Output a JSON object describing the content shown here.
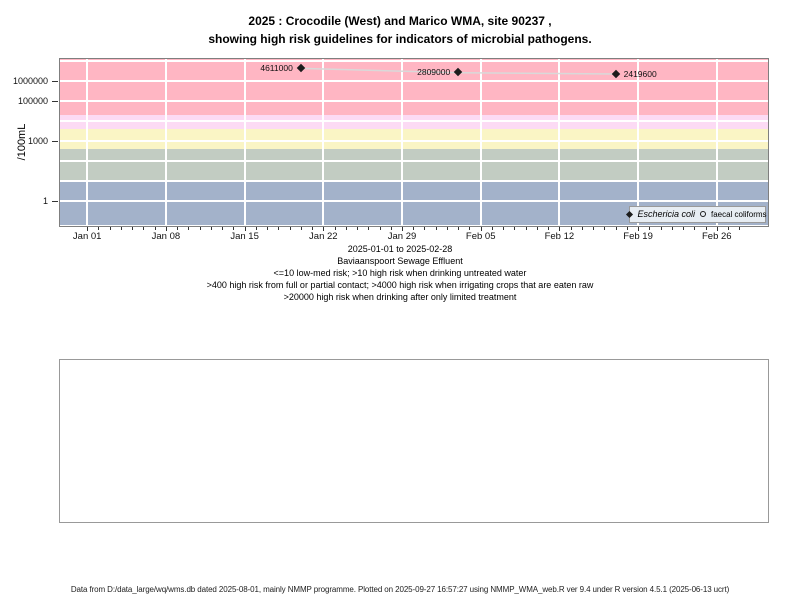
{
  "title": {
    "line1": "2025 : Crocodile (West) and Marico WMA, site 90237 ,",
    "line2": "showing high risk guidelines for indicators of microbial pathogens."
  },
  "chart_data": {
    "type": "scatter",
    "title": "2025 : Crocodile (West) and Marico WMA, site 90237 , showing high risk guidelines for indicators of microbial pathogens.",
    "xlabel": "2025-01-01 to 2025-02-28",
    "ylabel": "/100mL",
    "y_scale": "log10",
    "ylim": [
      0.06,
      14000000
    ],
    "grid": true,
    "x_axis": {
      "tick_labels": [
        "Jan 01",
        "Jan 08",
        "Jan 15",
        "Jan 22",
        "Jan 29",
        "Feb 05",
        "Feb 12",
        "Feb 19",
        "Feb 26"
      ],
      "major_tick_days": [
        0,
        7,
        14,
        21,
        28,
        35,
        42,
        49,
        56
      ],
      "minor_ticks": "daily",
      "total_days": 59
    },
    "y_axis": {
      "tick_labels": [
        "1000000",
        "100000",
        "1000",
        "1"
      ],
      "tick_values": [
        1000000,
        100000,
        1000,
        1
      ],
      "gridline_values": [
        1,
        10,
        100,
        1000,
        10000,
        100000,
        1000000,
        10000000
      ]
    },
    "risk_bands": [
      {
        "range": ">20000",
        "min": 20000,
        "max": null,
        "color": "#FFB6C3",
        "meaning": "high risk when drinking after only limited treatment"
      },
      {
        "range": "4000-20000",
        "min": 4000,
        "max": 20000,
        "color": "#FCDBF4",
        "meaning": "high risk when irrigating crops that are eaten raw"
      },
      {
        "range": "400-4000",
        "min": 400,
        "max": 4000,
        "color": "#FAF5C5",
        "meaning": "high risk from full or partial contact"
      },
      {
        "range": "10-400",
        "min": 10,
        "max": 400,
        "color": "#C2CCC2",
        "meaning": "high risk when drinking untreated water"
      },
      {
        "range": "<=10",
        "min": null,
        "max": 10,
        "color": "#A3B2CA",
        "meaning": "low-med risk"
      }
    ],
    "series": [
      {
        "name": "Eschericia coli",
        "symbol": "filled-diamond",
        "line_color": "#D9D9D9",
        "points": [
          {
            "date": "Jan 20",
            "day": 19,
            "value": 4611000,
            "label": "4611000",
            "label_side": "left"
          },
          {
            "date": "Feb 03",
            "day": 33,
            "value": 2809000,
            "label": "2809000",
            "label_side": "left"
          },
          {
            "date": "Feb 17",
            "day": 47,
            "value": 2419600,
            "label": "2419600",
            "label_side": "right"
          }
        ]
      },
      {
        "name": "faecal coliforms",
        "symbol": "open-circle",
        "points": []
      }
    ],
    "legend": {
      "position": "bottom-right",
      "items": [
        {
          "symbol": "filled-diamond",
          "label": "Eschericia coli"
        },
        {
          "symbol": "open-circle",
          "label": "faecal coliforms"
        }
      ]
    }
  },
  "caption": {
    "lines": [
      "2025-01-01 to 2025-02-28",
      "Baviaanspoort Sewage Effluent",
      "<=10 low-med risk; >10 high risk when drinking untreated water",
      ">400 high risk from full or partial contact; >4000 high risk when irrigating crops that are eaten raw",
      ">20000 high risk when drinking after only limited treatment"
    ]
  },
  "footer": {
    "text": "Data from D:/data_large/wq/wms.db dated 2025-08-01, mainly NMMP programme. Plotted on 2025-09-27 16:57:27 using NMMP_WMA_web.R ver 9.4 under R version 4.5.1 (2025-06-13 ucrt)"
  }
}
